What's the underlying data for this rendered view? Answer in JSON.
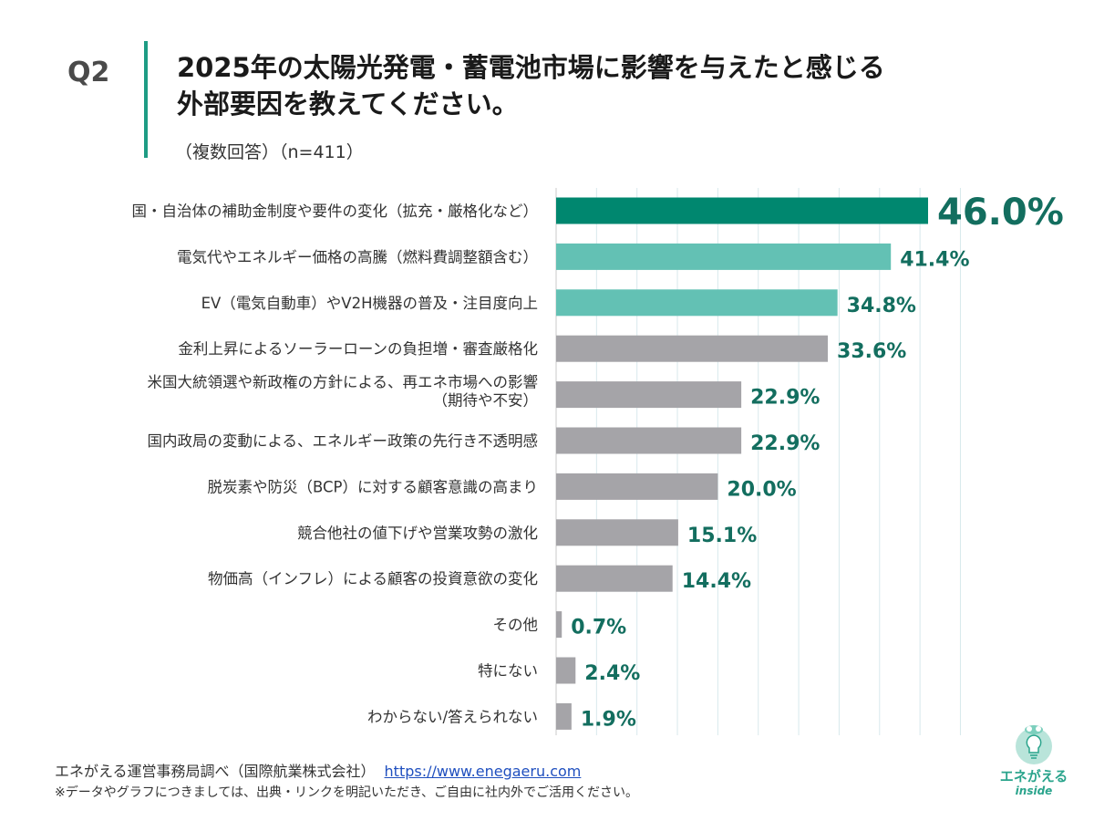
{
  "header": {
    "question_label": "Q2",
    "title_lines": [
      "2025年の太陽光発電・蓄電池市場に影響を与えたと感じる",
      "外部要因を教えてください。"
    ],
    "subtitle": "（複数回答）（n=411）"
  },
  "chart_data": {
    "type": "bar",
    "orientation": "horizontal",
    "title": "2025年の太陽光発電・蓄電池市場に影響を与えたと感じる外部要因を教えてください。",
    "xlim": [
      0,
      50
    ],
    "grid": true,
    "unit": "%",
    "categories": [
      [
        "国・自治体の補助金制度や要件の変化（拡充・厳格化など）"
      ],
      [
        "電気代やエネルギー価格の高騰（燃料費調整額含む）"
      ],
      [
        "EV（電気自動車）やV2H機器の普及・注目度向上"
      ],
      [
        "金利上昇によるソーラーローンの負担増・審査厳格化"
      ],
      [
        "米国大統領選や新政権の方針による、再エネ市場への影響",
        "（期待や不安）"
      ],
      [
        "国内政局の変動による、エネルギー政策の先行き不透明感"
      ],
      [
        "脱炭素や防災（BCP）に対する顧客意識の高まり"
      ],
      [
        "競合他社の値下げや営業攻勢の激化"
      ],
      [
        "物価高（インフレ）による顧客の投資意欲の変化"
      ],
      [
        "その他"
      ],
      [
        "特にない"
      ],
      [
        "わからない/答えられない"
      ]
    ],
    "values": [
      46.0,
      41.4,
      34.8,
      33.6,
      22.9,
      22.9,
      20.0,
      15.1,
      14.4,
      0.7,
      2.4,
      1.9
    ],
    "labels": [
      "46.0%",
      "41.4%",
      "34.8%",
      "33.6%",
      "22.9%",
      "22.9%",
      "20.0%",
      "15.1%",
      "14.4%",
      "0.7%",
      "2.4%",
      "1.9%"
    ],
    "colors": [
      "#00876f",
      "#63c1b4",
      "#63c1b4",
      "#a5a4a8",
      "#a5a4a8",
      "#a5a4a8",
      "#a5a4a8",
      "#a5a4a8",
      "#a5a4a8",
      "#a5a4a8",
      "#a5a4a8",
      "#a5a4a8"
    ],
    "label_color": "#136e5f",
    "grid_color": "#d8e9ec"
  },
  "footer": {
    "source": "エネがえる運営事務局調べ（国際航業株式会社）",
    "url": "https://www.enegaeru.com",
    "note": "※データやグラフにつきましては、出典・リンクを明記いただき、ご自由に社内外でご活用ください。"
  },
  "logo": {
    "icon": "enegaeru-bulb-icon",
    "text": "エネがえる",
    "sub": "inside"
  }
}
